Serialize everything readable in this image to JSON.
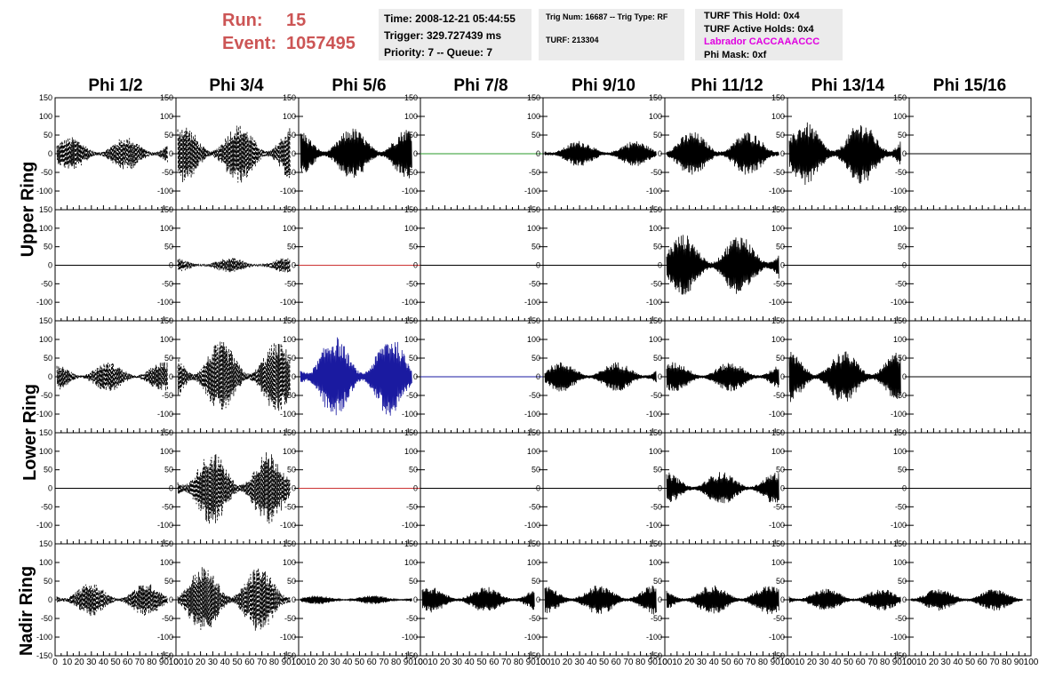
{
  "header": {
    "run_label": "Run:",
    "run_value": "15",
    "event_label": "Event:",
    "event_value": "1057495"
  },
  "info_time": {
    "time": "Time: 2008-12-21 05:44:55",
    "trigger": "Trigger: 329.727439 ms",
    "priority": "Priority: 7 -- Queue: 7"
  },
  "info_trig": {
    "trig": "Trig Num: 16687 -- Trig Type: RF",
    "turf": "TURF: 213304"
  },
  "info_turf": {
    "this_hold": "TURF This Hold: 0x4",
    "active_holds": "TURF Active Holds: 0x4",
    "labrador": "Labrador CACCAAACCC",
    "phi_mask": "Phi Mask: 0xf"
  },
  "columns": [
    "Phi 1/2",
    "Phi 3/4",
    "Phi 5/6",
    "Phi 7/8",
    "Phi 9/10",
    "Phi 11/12",
    "Phi 13/14",
    "Phi 15/16"
  ],
  "row_labels": [
    "Upper Ring",
    "Lower Ring",
    "Nadir Ring"
  ],
  "y_ticks_upper": [
    "150",
    "100",
    "50",
    "0",
    "-50",
    "-100"
  ],
  "y_ticks_nadir": [
    "150",
    "100",
    "50",
    "0",
    "-50",
    "-100",
    "-150"
  ],
  "x_ticks": [
    "0",
    "10",
    "20",
    "30",
    "40",
    "50",
    "60",
    "70",
    "80",
    "90",
    "100"
  ],
  "x_tick_values": [
    0,
    10,
    20,
    30,
    40,
    50,
    60,
    70,
    80,
    90,
    100
  ],
  "colors": {
    "run": "#cc5555",
    "labrador": "#e000e0",
    "panel_bg": "#ebebeb",
    "blue": "#1a1aa0",
    "green": "#2a9a2a",
    "red": "#cc3333"
  },
  "chart_data": {
    "type": "line",
    "xlim": [
      0,
      100
    ],
    "ylim": [
      -150,
      150
    ],
    "traces": [
      [
        {
          "style": "dashed",
          "amp": 45
        },
        {
          "style": "dashed",
          "amp": 80
        },
        {
          "style": "solid",
          "amp": 70
        },
        {
          "style": "flat",
          "color": "green"
        },
        {
          "style": "solid",
          "amp": 35
        },
        {
          "style": "solid",
          "amp": 60
        },
        {
          "style": "solid",
          "amp": 85
        },
        {
          "style": "flat"
        }
      ],
      [
        {
          "style": "flat"
        },
        {
          "style": "dashed",
          "amp": 20
        },
        {
          "style": "flat",
          "color": "red"
        },
        {
          "style": "flat"
        },
        {
          "style": "flat"
        },
        {
          "style": "solid",
          "amp": 85
        },
        {
          "style": "flat"
        },
        {
          "style": "flat"
        }
      ],
      [
        {
          "style": "dashed",
          "amp": 40
        },
        {
          "style": "dashed",
          "amp": 95
        },
        {
          "style": "solid",
          "amp": 110,
          "color": "blue"
        },
        {
          "style": "flat",
          "color": "blue"
        },
        {
          "style": "solid",
          "amp": 40
        },
        {
          "style": "solid",
          "amp": 40
        },
        {
          "style": "solid",
          "amp": 70
        },
        {
          "style": "flat"
        }
      ],
      [
        {
          "style": "flat"
        },
        {
          "style": "dashed",
          "amp": 100
        },
        {
          "style": "flat",
          "color": "red"
        },
        {
          "style": "flat"
        },
        {
          "style": "flat"
        },
        {
          "style": "solid",
          "amp": 45
        },
        {
          "style": "flat"
        },
        {
          "style": "flat"
        }
      ],
      [
        {
          "style": "dashed",
          "amp": 45
        },
        {
          "style": "dashed",
          "amp": 90
        },
        {
          "style": "solid",
          "amp": 12
        },
        {
          "style": "solid",
          "amp": 35
        },
        {
          "style": "solid",
          "amp": 40
        },
        {
          "style": "solid",
          "amp": 40
        },
        {
          "style": "solid",
          "amp": 30
        },
        {
          "style": "solid",
          "amp": 30
        }
      ]
    ]
  }
}
